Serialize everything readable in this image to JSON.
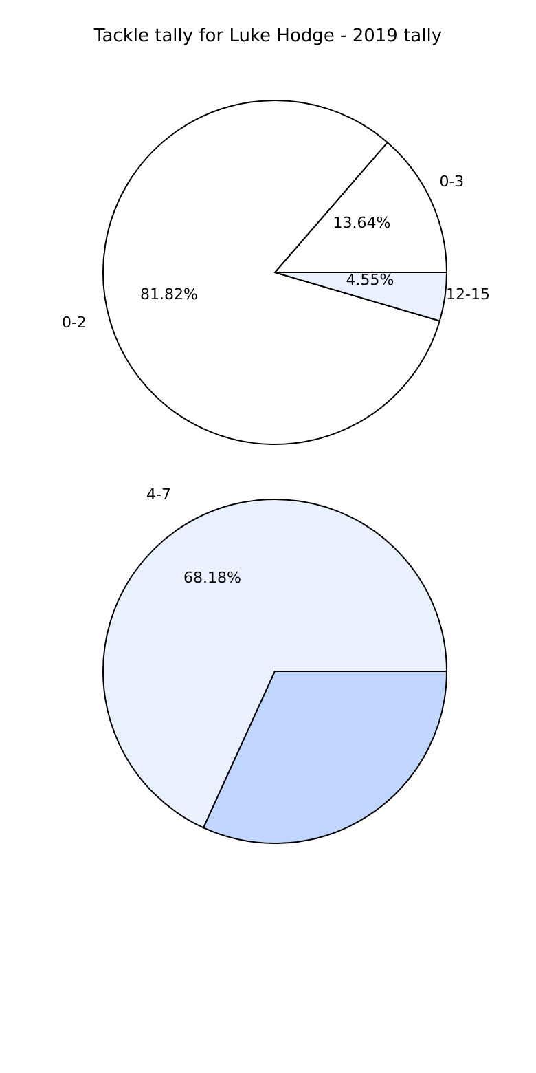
{
  "chart_data": [
    {
      "type": "pie",
      "title": "Tackle tally for Luke Hodge - 2019 tally",
      "categories": [
        "0-3",
        "0-2",
        "12-15"
      ],
      "values": [
        13.64,
        81.82,
        4.55
      ],
      "colors": [
        "#ffffff",
        "#ffffff",
        "#eaf1fe"
      ],
      "value_labels": [
        "13.64%",
        "81.82%",
        "4.55%"
      ]
    },
    {
      "type": "pie",
      "categories": [
        "4-7",
        null
      ],
      "values": [
        68.18,
        31.82
      ],
      "colors": [
        "#eaf1fe",
        "#c0d6ff"
      ],
      "value_labels": [
        "68.18%",
        null
      ]
    }
  ]
}
